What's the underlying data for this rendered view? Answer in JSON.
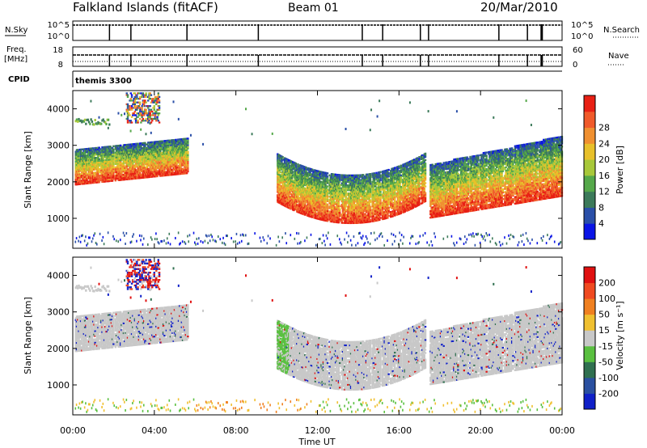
{
  "header": {
    "station": "Falkland Islands (fitACF)",
    "beam": "Beam 01",
    "date": "20/Mar/2010"
  },
  "status_panels": {
    "nsky_label": "N.Sky",
    "nsky_ticks": [
      "10^5",
      "10^0"
    ],
    "nsearch_label": "N.Search",
    "nsearch_ticks": [
      "10^5",
      "10^0"
    ],
    "freq_label_1": "Freq.",
    "freq_label_2": "[MHz]",
    "freq_ticks": [
      "18",
      "8"
    ],
    "nave_label": "Nave",
    "nave_ticks": [
      "60",
      "0"
    ],
    "cpid_label": "CPID",
    "cpid_value": "themis 3300"
  },
  "chart_data": [
    {
      "type": "heatmap",
      "panel": "power",
      "ylabel": "Slant Range [km]",
      "ytick_labels": [
        "1000",
        "2000",
        "3000",
        "4000"
      ],
      "yticks": [
        1000,
        2000,
        3000,
        4000
      ],
      "ylim": [
        180,
        4500
      ],
      "xlim": [
        0,
        24
      ],
      "colorbar": {
        "label": "Power [dB]",
        "ticks": [
          "4",
          "8",
          "12",
          "16",
          "20",
          "24",
          "28"
        ],
        "colors": [
          "#0a14e6",
          "#2a4fa8",
          "#3c7a5a",
          "#55a84a",
          "#a8c83a",
          "#e8c02a",
          "#f09030",
          "#f05a2a",
          "#e82014"
        ]
      }
    },
    {
      "type": "heatmap",
      "panel": "velocity",
      "ylabel": "Slant Range [km]",
      "ytick_labels": [
        "1000",
        "2000",
        "3000",
        "4000"
      ],
      "yticks": [
        1000,
        2000,
        3000,
        4000
      ],
      "ylim": [
        180,
        4500
      ],
      "xlim": [
        0,
        24
      ],
      "xlabel": "Time UT",
      "xtick_labels": [
        "00:00",
        "04:00",
        "08:00",
        "12:00",
        "16:00",
        "20:00",
        "00:00"
      ],
      "xticks": [
        0,
        4,
        8,
        12,
        16,
        20,
        24
      ],
      "colorbar": {
        "label": "Velocity [m s⁻¹]",
        "ticks": [
          "200",
          "100",
          "50",
          "15",
          "-15",
          "-50",
          "-100",
          "-200"
        ],
        "colors": [
          "#1020c8",
          "#2a50a0",
          "#307050",
          "#5ac040",
          "#c8c8c8",
          "#f0c030",
          "#f08020",
          "#f04a20",
          "#e01010"
        ]
      }
    }
  ]
}
